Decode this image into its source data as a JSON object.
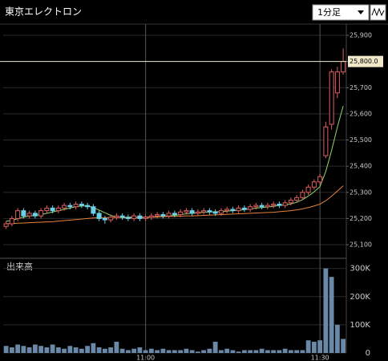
{
  "header": {
    "title": "東京エレクトロン",
    "interval": "1分足"
  },
  "chart_data": {
    "type": "candlestick",
    "categories": [
      null,
      null,
      null,
      null,
      null,
      null,
      null,
      null,
      null,
      null,
      null,
      null,
      null,
      null,
      null,
      null,
      null,
      null,
      null,
      null,
      null,
      null,
      null,
      null,
      "11:00",
      null,
      null,
      null,
      null,
      null,
      null,
      null,
      null,
      null,
      null,
      null,
      null,
      null,
      null,
      null,
      null,
      null,
      null,
      null,
      null,
      null,
      null,
      null,
      null,
      null,
      null,
      null,
      null,
      null,
      "11:30",
      null,
      null,
      null,
      null
    ],
    "ohlc": {
      "open": [
        25170,
        25180,
        25200,
        25230,
        25210,
        25220,
        25210,
        25230,
        25240,
        25230,
        25240,
        25250,
        25245,
        25255,
        25250,
        25245,
        25220,
        25200,
        25195,
        25205,
        25210,
        25205,
        25200,
        25210,
        25200,
        25205,
        25210,
        25215,
        25210,
        25220,
        25215,
        25225,
        25230,
        25220,
        25225,
        25230,
        25225,
        25220,
        25230,
        25235,
        25230,
        25240,
        25235,
        25245,
        25250,
        25245,
        25250,
        25255,
        25250,
        25260,
        25270,
        25280,
        25300,
        25320,
        25340,
        25440,
        25560,
        25680,
        25760
      ],
      "high": [
        25190,
        25210,
        25240,
        25240,
        25230,
        25230,
        25240,
        25250,
        25250,
        25250,
        25260,
        25260,
        25265,
        25265,
        25260,
        25255,
        25230,
        25210,
        25215,
        25220,
        25220,
        25215,
        25220,
        25220,
        25215,
        25220,
        25225,
        25225,
        25230,
        25230,
        25235,
        25240,
        25240,
        25235,
        25240,
        25240,
        25235,
        25240,
        25245,
        25245,
        25250,
        25250,
        25255,
        25260,
        25260,
        25260,
        25265,
        25265,
        25270,
        25280,
        25290,
        25310,
        25330,
        25350,
        25370,
        25570,
        25770,
        25780,
        25850
      ],
      "low": [
        25160,
        25170,
        25190,
        25200,
        25200,
        25200,
        25200,
        25220,
        25220,
        25220,
        25230,
        25235,
        25235,
        25240,
        25235,
        25210,
        25190,
        25180,
        25185,
        25195,
        25195,
        25190,
        25190,
        25190,
        25190,
        25195,
        25200,
        25200,
        25200,
        25205,
        25205,
        25215,
        25210,
        25210,
        25215,
        25215,
        25210,
        25210,
        25220,
        25220,
        25220,
        25225,
        25225,
        25235,
        25235,
        25235,
        25240,
        25240,
        25240,
        25250,
        25260,
        25270,
        25290,
        25310,
        25330,
        25430,
        25540,
        25660,
        25750
      ],
      "close": [
        25180,
        25200,
        25230,
        25210,
        25220,
        25210,
        25230,
        25240,
        25230,
        25240,
        25250,
        25245,
        25255,
        25250,
        25245,
        25220,
        25200,
        25195,
        25205,
        25210,
        25205,
        25200,
        25210,
        25200,
        25205,
        25210,
        25215,
        25210,
        25220,
        25215,
        25225,
        25230,
        25220,
        25225,
        25230,
        25225,
        25220,
        25230,
        25235,
        25230,
        25240,
        25235,
        25245,
        25250,
        25245,
        25250,
        25255,
        25250,
        25260,
        25270,
        25280,
        25300,
        25320,
        25340,
        25360,
        25550,
        25760,
        25760,
        25800
      ],
      "up_color": "#e06060",
      "down_color": "#6cd0e8"
    },
    "moving_averages": [
      {
        "color": "#8fd86a",
        "values": [
          25190,
          25192,
          25200,
          25205,
          25210,
          25212,
          25215,
          25220,
          25225,
          25230,
          25235,
          25240,
          25245,
          25248,
          25248,
          25242,
          25232,
          25222,
          25212,
          25206,
          25203,
          25202,
          25203,
          25204,
          25204,
          25205,
          25206,
          25208,
          25210,
          25212,
          25215,
          25218,
          25220,
          25222,
          25224,
          25225,
          25226,
          25226,
          25228,
          25230,
          25232,
          25234,
          25236,
          25240,
          25242,
          25244,
          25247,
          25250,
          25252,
          25256,
          25262,
          25272,
          25286,
          25302,
          25322,
          25380,
          25460,
          25550,
          25630
        ]
      },
      {
        "color": "#e8833a",
        "values": [
          25180,
          25181,
          25182,
          25183,
          25184,
          25185,
          25186,
          25187,
          25188,
          25190,
          25192,
          25194,
          25196,
          25198,
          25200,
          25202,
          25203,
          25203,
          25203,
          25204,
          25204,
          25205,
          25205,
          25205,
          25206,
          25206,
          25207,
          25207,
          25208,
          25208,
          25209,
          25210,
          25210,
          25211,
          25212,
          25213,
          25214,
          25215,
          25216,
          25217,
          25218,
          25219,
          25220,
          25221,
          25222,
          25223,
          25224,
          25226,
          25228,
          25230,
          25233,
          25237,
          25242,
          25248,
          25255,
          25268,
          25285,
          25305,
          25325
        ]
      }
    ],
    "ylim": [
      25048,
      25943
    ],
    "yticks": [
      {
        "value": 25100,
        "label": "25,100"
      },
      {
        "value": 25200,
        "label": "25,200"
      },
      {
        "value": 25300,
        "label": "25,300"
      },
      {
        "value": 25400,
        "label": "25,400"
      },
      {
        "value": 25500,
        "label": "25,500"
      },
      {
        "value": 25600,
        "label": "25,600"
      },
      {
        "value": 25700,
        "label": "25,700"
      },
      {
        "value": 25800,
        "label": "25,800"
      },
      {
        "value": 25900,
        "label": "25,900"
      }
    ],
    "last_price": {
      "value": 25800,
      "label": "25,800.0"
    },
    "volume": {
      "label": "出来高",
      "color": "#6a88a8",
      "values": [
        25000,
        20000,
        30000,
        25000,
        20000,
        30000,
        25000,
        20000,
        30000,
        20000,
        15000,
        25000,
        20000,
        15000,
        25000,
        35000,
        20000,
        15000,
        20000,
        40000,
        15000,
        10000,
        15000,
        20000,
        10000,
        15000,
        10000,
        15000,
        10000,
        10000,
        10000,
        15000,
        10000,
        5000,
        10000,
        15000,
        40000,
        10000,
        15000,
        10000,
        5000,
        10000,
        10000,
        10000,
        15000,
        10000,
        10000,
        10000,
        15000,
        10000,
        10000,
        10000,
        45000,
        40000,
        45000,
        300000,
        270000,
        100000,
        50000
      ],
      "ylim": [
        0,
        336000
      ],
      "yticks": [
        0,
        {
          "value": 100000,
          "label": "100K"
        },
        {
          "value": 200000,
          "label": "200K"
        },
        {
          "value": 300000,
          "label": "300K"
        }
      ]
    }
  }
}
